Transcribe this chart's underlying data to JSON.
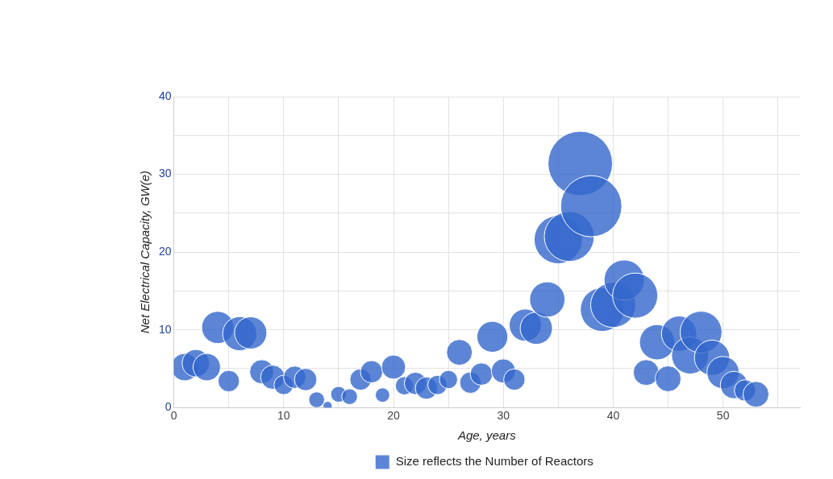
{
  "chart_data": {
    "type": "bubble",
    "xlabel": "Age, years",
    "ylabel": "Net Electrical Capacity, GW(e)",
    "xlim": [
      0,
      57
    ],
    "xticks": [
      0,
      {
        "value": 5,
        "label": null
      },
      10,
      {
        "value": 15,
        "label": null
      },
      20,
      {
        "value": 25,
        "label": null
      },
      30,
      {
        "value": 35,
        "label": null
      },
      40,
      {
        "value": 45,
        "label": null
      },
      50,
      {
        "value": 55,
        "label": null
      }
    ],
    "ylim": [
      0,
      40
    ],
    "yticks": [
      0,
      {
        "value": 5,
        "label": null
      },
      10,
      {
        "value": 15,
        "label": null
      },
      20,
      {
        "value": 25,
        "label": null
      },
      30,
      {
        "value": 35,
        "label": null
      },
      40
    ],
    "grid": true,
    "legend": "bottom",
    "series": [
      {
        "name": "Size reflects the Number of Reactors",
        "color": "#3366cc",
        "x": [
          1,
          2,
          3,
          4,
          5,
          6,
          7,
          8,
          9,
          10,
          11,
          12,
          13,
          14,
          15,
          16,
          17,
          18,
          19,
          20,
          21,
          22,
          23,
          24,
          25,
          26,
          27,
          28,
          29,
          30,
          31,
          32,
          33,
          34,
          35,
          36,
          37,
          38,
          39,
          40,
          41,
          42,
          43,
          44,
          45,
          46,
          47,
          48,
          49,
          50,
          51,
          52,
          53
        ],
        "values": [
          5.2,
          5.7,
          5.2,
          10.3,
          3.4,
          9.5,
          9.6,
          4.6,
          3.9,
          2.9,
          3.9,
          3.6,
          1.0,
          0.2,
          1.7,
          1.4,
          3.6,
          4.6,
          1.6,
          5.2,
          2.8,
          3.1,
          2.5,
          2.9,
          3.6,
          7.1,
          3.2,
          4.3,
          9.1,
          4.7,
          3.6,
          10.6,
          10.2,
          13.9,
          21.6,
          22.0,
          31.4,
          25.9,
          12.6,
          13.2,
          16.4,
          14.4,
          4.5,
          8.4,
          3.7,
          9.5,
          6.7,
          9.7,
          6.4,
          4.5,
          2.9,
          2.2,
          1.7
        ],
        "sizes": [
          0.18,
          0.18,
          0.18,
          0.25,
          0.11,
          0.28,
          0.25,
          0.14,
          0.14,
          0.09,
          0.12,
          0.12,
          0.06,
          0.02,
          0.06,
          0.06,
          0.11,
          0.12,
          0.05,
          0.14,
          0.08,
          0.12,
          0.12,
          0.09,
          0.08,
          0.16,
          0.11,
          0.12,
          0.23,
          0.14,
          0.11,
          0.25,
          0.25,
          0.3,
          0.56,
          0.6,
          1,
          0.9,
          0.46,
          0.49,
          0.39,
          0.49,
          0.16,
          0.3,
          0.16,
          0.3,
          0.33,
          0.42,
          0.3,
          0.25,
          0.18,
          0.11,
          0.16
        ]
      }
    ]
  }
}
